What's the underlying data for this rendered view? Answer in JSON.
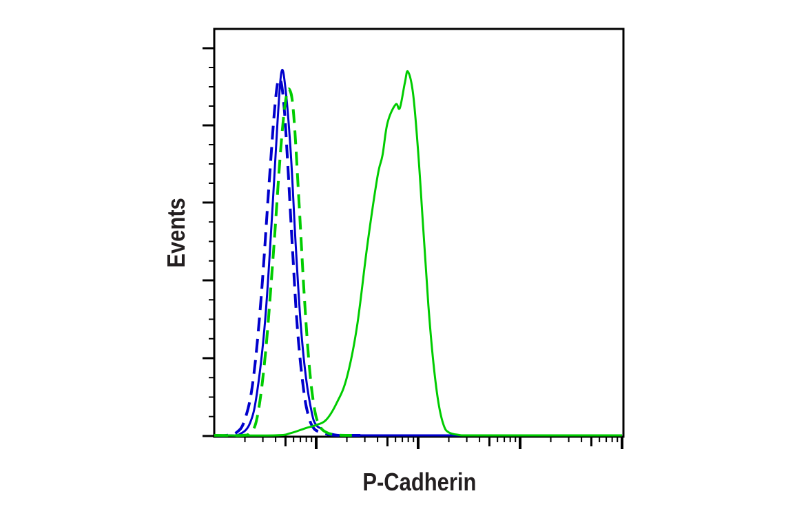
{
  "chart_data": {
    "type": "line",
    "title": "",
    "xlabel": "P-Cadherin",
    "ylabel": "Events",
    "x_scale": "log",
    "grid": false,
    "legend": null,
    "xlim_decades": [
      0,
      4
    ],
    "ylim": [
      0,
      100
    ],
    "colors": {
      "blue": "#0000cc",
      "green": "#00cc00",
      "axis": "#000000"
    },
    "series": [
      {
        "name": "blue-solid",
        "color": "#0000cc",
        "dash": "solid",
        "x": [
          0.0,
          0.15,
          0.25,
          0.35,
          0.42,
          0.5,
          0.57,
          0.62,
          0.66,
          0.7,
          0.75,
          0.8,
          0.85,
          0.9,
          0.96,
          1.0,
          1.05,
          1.1,
          1.2,
          1.3,
          1.5,
          2.0,
          3.0,
          4.0
        ],
        "y": [
          0.0,
          0.0,
          0.5,
          3.5,
          12,
          32,
          62,
          86,
          100,
          95,
          78,
          52,
          30,
          16,
          6,
          3,
          2,
          1,
          0.3,
          0.1,
          0.0,
          0.0,
          0.0,
          0.0
        ]
      },
      {
        "name": "blue-dashed",
        "color": "#0000cc",
        "dash": "dashed",
        "x": [
          0.0,
          0.12,
          0.22,
          0.3,
          0.38,
          0.46,
          0.54,
          0.6,
          0.64,
          0.68,
          0.72,
          0.77,
          0.82,
          0.88,
          0.93,
          0.98,
          1.05,
          1.15,
          1.3,
          1.5
        ],
        "y": [
          0.0,
          0.0,
          1.0,
          4.5,
          15,
          38,
          70,
          92,
          98,
          92,
          75,
          50,
          28,
          12,
          5,
          2,
          1,
          0.3,
          0.1,
          0.0
        ]
      },
      {
        "name": "green-dashed",
        "color": "#00cc00",
        "dash": "dashed",
        "x": [
          0.0,
          0.28,
          0.35,
          0.42,
          0.5,
          0.58,
          0.65,
          0.7,
          0.74,
          0.78,
          0.83,
          0.88,
          0.93,
          0.98,
          1.03,
          1.1,
          1.2,
          1.35
        ],
        "y": [
          0.0,
          0.0,
          1.0,
          5,
          22,
          50,
          78,
          92,
          95,
          88,
          65,
          40,
          20,
          8,
          3,
          1,
          0.3,
          0.0
        ]
      },
      {
        "name": "green-solid",
        "color": "#00cc00",
        "dash": "solid",
        "x": [
          0.0,
          0.6,
          0.75,
          0.9,
          1.0,
          1.1,
          1.2,
          1.3,
          1.4,
          1.5,
          1.6,
          1.65,
          1.7,
          1.78,
          1.82,
          1.87,
          1.9,
          1.95,
          2.0,
          2.05,
          2.1,
          2.15,
          2.2,
          2.25,
          2.3,
          2.4,
          2.5,
          3.0,
          4.0
        ],
        "y": [
          0.0,
          0.0,
          0.8,
          2.2,
          3.0,
          4.5,
          9,
          16,
          30,
          52,
          71,
          77,
          86,
          91,
          90,
          97,
          100,
          94,
          78,
          57,
          36,
          20,
          9,
          3,
          1,
          0.3,
          0.1,
          0.0,
          0.0
        ]
      }
    ],
    "x_axis": {
      "major_ticks_decades": [
        0,
        1,
        2,
        3,
        4
      ],
      "tick_labels": []
    },
    "y_axis": {
      "major_ticks": [
        0,
        20,
        40,
        60,
        80,
        100
      ],
      "tick_labels": []
    }
  }
}
